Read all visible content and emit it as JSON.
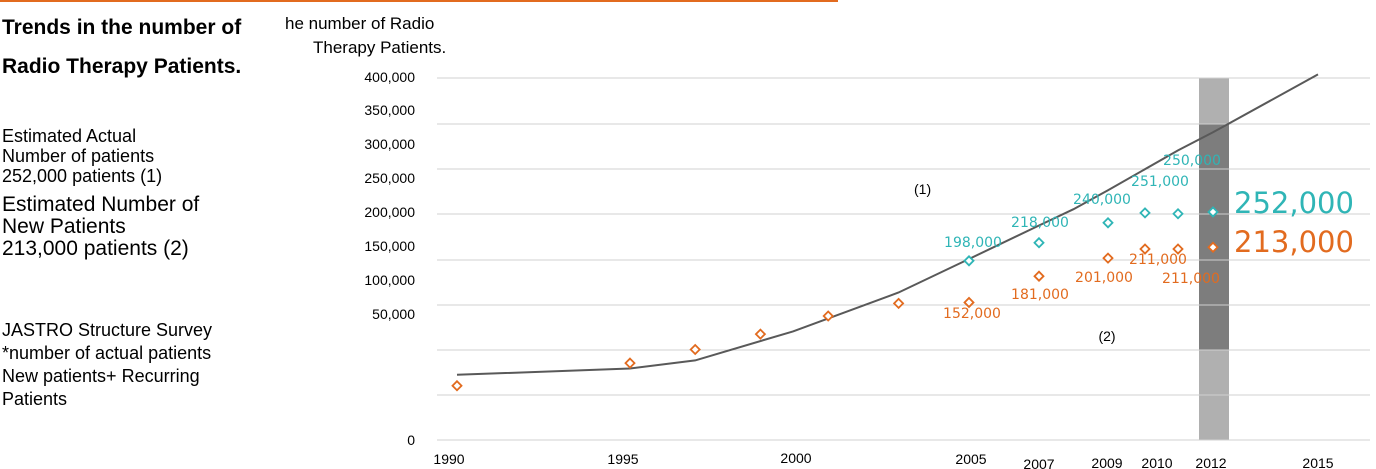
{
  "side": {
    "heading": "Trends in the number of Radio Therapy Patients.",
    "estimate_actual": [
      "Estimated Actual",
      "Number of patients",
      "252,000 patients (1)"
    ],
    "estimate_new": [
      "Estimated Number of",
      "New Patients",
      "213,000 patients (2)"
    ],
    "survey_note": [
      "JASTRO Structure Survey",
      "*number of actual patients",
      "New patients+ Recurring",
      "Patients"
    ]
  },
  "chart_data": {
    "type": "scatter",
    "ylabel": [
      "he number of Radio",
      "Therapy Patients."
    ],
    "y_ticks": [
      "0",
      "50,000",
      "100,000",
      "150,000",
      "200,000",
      "250,000",
      "300,000",
      "350,000",
      "400,000"
    ],
    "x_ticks": [
      "1990",
      "1995",
      "2000",
      "2005",
      "2007",
      "2009",
      "2010",
      "2012",
      "2015"
    ],
    "grid": true,
    "highlight_year": "2012",
    "series": [
      {
        "name": "(1)",
        "kind": "line",
        "color": "#595959",
        "points": [
          [
            1990,
            72000
          ],
          [
            1995,
            79000
          ],
          [
            1997,
            88000
          ],
          [
            2000,
            120000
          ],
          [
            2003,
            163000
          ],
          [
            2005,
            200000
          ],
          [
            2007,
            237000
          ],
          [
            2008,
            255000
          ],
          [
            2009,
            276000
          ],
          [
            2011,
            320000
          ],
          [
            2012,
            340000
          ],
          [
            2015,
            404000
          ]
        ]
      },
      {
        "name": "Estimated actual patients",
        "kind": "markers",
        "color": "#2fb5b6",
        "points": [
          [
            2005,
            198000
          ],
          [
            2007,
            218000
          ],
          [
            2009,
            240000
          ],
          [
            2010,
            251000
          ],
          [
            2011,
            250000
          ],
          [
            2012,
            252000
          ]
        ],
        "labels": [
          "198,000",
          "218,000",
          "240,000",
          "251,000",
          "250,000",
          "252,000"
        ]
      },
      {
        "name": "(2)",
        "kind": "markers",
        "color": "#e26b1f",
        "points": [
          [
            1990,
            60000
          ],
          [
            1995,
            85000
          ],
          [
            1997,
            100000
          ],
          [
            1999,
            117000
          ],
          [
            2001,
            137000
          ],
          [
            2003,
            151000
          ],
          [
            2005,
            152000
          ],
          [
            2007,
            181000
          ],
          [
            2009,
            201000
          ],
          [
            2010,
            211000
          ],
          [
            2011,
            211000
          ],
          [
            2012,
            213000
          ]
        ],
        "labels": [
          "",
          "",
          "",
          "",
          "",
          "",
          "152,000",
          "181,000",
          "201,000",
          "211,000",
          "211,000",
          "213,000"
        ]
      }
    ]
  }
}
